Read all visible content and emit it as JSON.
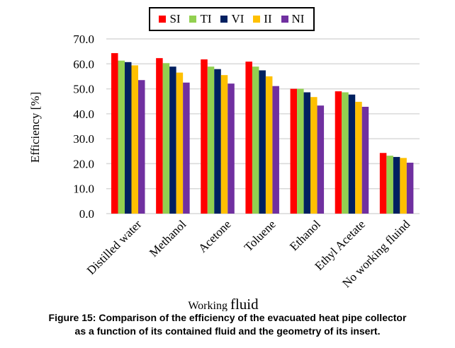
{
  "chart_data": {
    "type": "bar",
    "categories": [
      "Distilled water",
      "Methanol",
      "Acetone",
      "Toluene",
      "Ethanol",
      "Ethyl Acetate",
      "No working fluind"
    ],
    "series": [
      {
        "name": "SI",
        "color": "#ff0000",
        "values": [
          64.3,
          62.3,
          61.8,
          60.9,
          50.0,
          49.0,
          24.3
        ]
      },
      {
        "name": "TI",
        "color": "#92d050",
        "values": [
          61.3,
          60.3,
          58.9,
          58.9,
          50.0,
          48.6,
          23.2
        ]
      },
      {
        "name": "VI",
        "color": "#002060",
        "values": [
          60.7,
          58.9,
          57.9,
          57.4,
          48.6,
          47.7,
          22.7
        ]
      },
      {
        "name": "II",
        "color": "#ffc000",
        "values": [
          59.4,
          56.5,
          55.5,
          55.0,
          46.7,
          44.8,
          22.3
        ]
      },
      {
        "name": "NI",
        "color": "#7030a0",
        "values": [
          53.5,
          52.5,
          52.1,
          51.1,
          43.3,
          42.8,
          20.4
        ]
      }
    ],
    "yticks": [
      "0.0",
      "10.0",
      "20.0",
      "30.0",
      "40.0",
      "50.0",
      "60.0",
      "70.0"
    ],
    "ylim": [
      0,
      70
    ],
    "ylabel": "Efficiency [%]",
    "xlabel_part1": "Working ",
    "xlabel_part2": "fluid",
    "grid": true,
    "legend_position": "top"
  },
  "caption": {
    "line1": "Figure 15: Comparison of the efficiency of the evacuated heat pipe collector",
    "line2": "as a function of its contained fluid and the geometry of its insert."
  }
}
